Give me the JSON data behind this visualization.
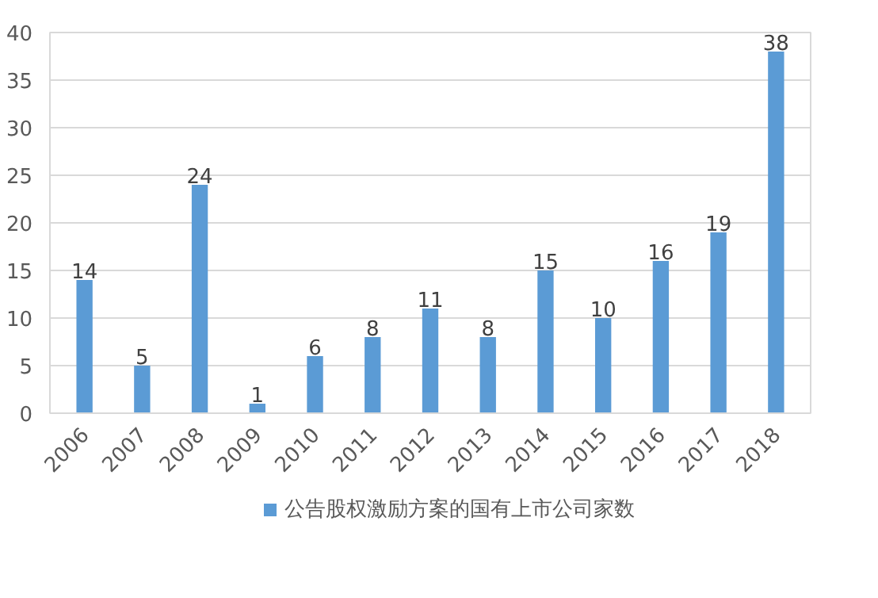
{
  "chart_data": {
    "type": "bar",
    "categories": [
      "2006",
      "2007",
      "2008",
      "2009",
      "2010",
      "2011",
      "2012",
      "2013",
      "2014",
      "2015",
      "2016",
      "2017",
      "2018"
    ],
    "series": [
      {
        "name": "公告股权激励方案的国有上市公司家数",
        "color": "#5b9bd5",
        "values": [
          14,
          5,
          24,
          1,
          6,
          8,
          11,
          8,
          15,
          10,
          16,
          19,
          38
        ]
      }
    ],
    "ylim": [
      0,
      40
    ],
    "yticks": [
      0,
      5,
      10,
      15,
      20,
      25,
      30,
      35,
      40
    ],
    "grid": "y",
    "legend": "bottom",
    "data_labels": true
  }
}
